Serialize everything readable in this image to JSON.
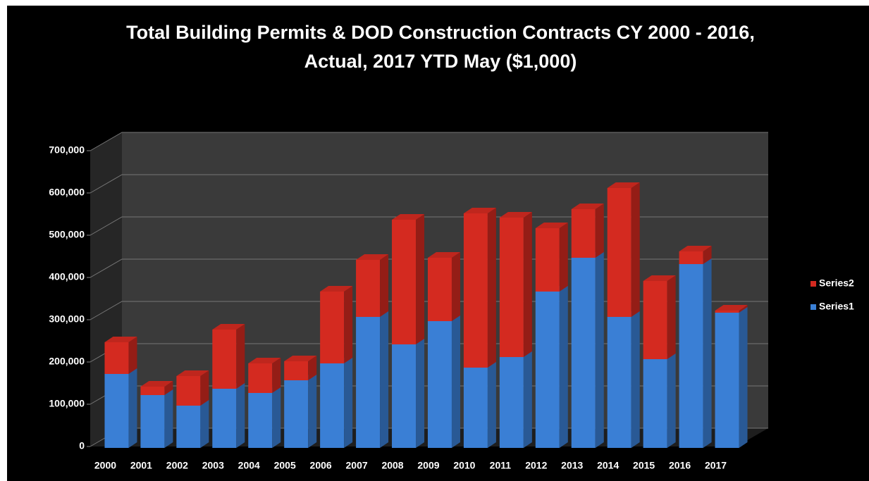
{
  "chart_data": {
    "type": "bar3d_stacked",
    "title": [
      "Total Building Permits & DOD Construction Contracts CY 2000 - 2016,",
      "Actual, 2017 YTD May ($1,000)"
    ],
    "categories": [
      "2000",
      "2001",
      "2002",
      "2003",
      "2004",
      "2005",
      "2006",
      "2007",
      "2008",
      "2009",
      "2010",
      "2011",
      "2012",
      "2013",
      "2014",
      "2015",
      "2016",
      "2017"
    ],
    "series": [
      {
        "name": "Series1",
        "color": "#3a7fd5",
        "values": [
          175000,
          125000,
          100000,
          140000,
          130000,
          160000,
          200000,
          310000,
          245000,
          300000,
          190000,
          215000,
          370000,
          450000,
          310000,
          210000,
          435000,
          320000
        ]
      },
      {
        "name": "Series2",
        "color": "#d42a20",
        "values": [
          75000,
          20000,
          70000,
          140000,
          70000,
          45000,
          170000,
          135000,
          295000,
          150000,
          365000,
          330000,
          150000,
          115000,
          305000,
          185000,
          30000,
          5000
        ]
      }
    ],
    "ylim": [
      0,
      700000
    ],
    "yticks": [
      0,
      {
        "value": 100000,
        "label": "100,000"
      },
      {
        "value": 200000,
        "label": "200,000"
      },
      {
        "value": 300000,
        "label": "300,000"
      },
      {
        "value": 400000,
        "label": "400,000"
      },
      {
        "value": 500000,
        "label": "500,000"
      },
      {
        "value": 600000,
        "label": "600,000"
      },
      {
        "value": 700000,
        "label": "700,000"
      }
    ],
    "grid": true,
    "legend": "right"
  }
}
